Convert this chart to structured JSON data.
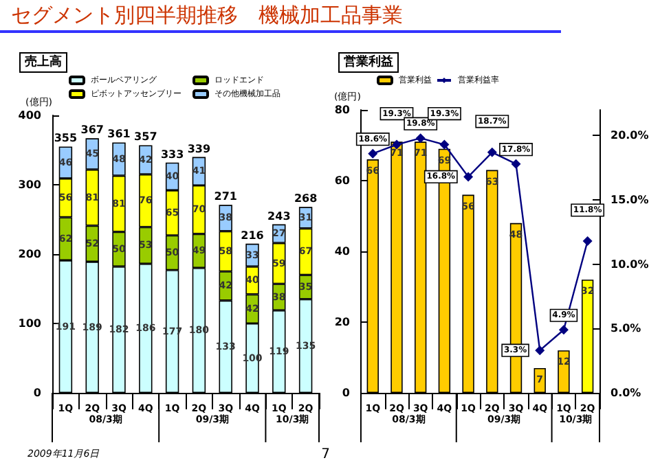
{
  "chart_data": [
    {
      "type": "bar",
      "title": "セグメント別四半期推移　機械加工品事業",
      "subtitle": "売上高",
      "ylabel": "(億円)",
      "categories": [
        "1Q",
        "2Q",
        "3Q",
        "4Q",
        "1Q",
        "2Q",
        "3Q",
        "4Q",
        "1Q",
        "2Q"
      ],
      "stacked": true,
      "data_labels": true,
      "totals": [
        "355",
        "367",
        "361",
        "357",
        "333",
        "339",
        "271",
        "216",
        "243",
        "268"
      ],
      "ylim": [
        0,
        400
      ],
      "yticks": [
        0,
        100,
        200,
        300,
        400
      ],
      "grid": false,
      "legend": "top",
      "annotations": [
        "08/3期",
        "09/3期",
        "10/3期",
        "2009年11月6日",
        "7"
      ],
      "series": [
        {
          "name": "ボールベアリング",
          "color": "#ccffff",
          "values": [
            191,
            189,
            182,
            186,
            177,
            180,
            133,
            100,
            119,
            135
          ]
        },
        {
          "name": "ロッドエンド",
          "color": "#99cc00",
          "values": [
            62,
            52,
            50,
            53,
            50,
            49,
            42,
            42,
            38,
            35
          ]
        },
        {
          "name": "ピボットアッセンブリー",
          "color": "#ffff00",
          "values": [
            56,
            81,
            81,
            76,
            65,
            70,
            58,
            40,
            59,
            67
          ]
        },
        {
          "name": "その他機械加工品",
          "color": "#99ccff",
          "values": [
            46,
            45,
            48,
            42,
            40,
            41,
            38,
            33,
            27,
            31
          ]
        }
      ]
    },
    {
      "type": "bar",
      "subtitle": "営業利益",
      "ylabel": "(億円)",
      "categories": [
        "1Q",
        "2Q",
        "3Q",
        "4Q",
        "1Q",
        "2Q",
        "3Q",
        "4Q",
        "1Q",
        "2Q"
      ],
      "ylim": [
        0,
        80
      ],
      "yticks": [
        0,
        20,
        40,
        60,
        80
      ],
      "y2lim": [
        0,
        22
      ],
      "y2ticks": [
        {
          "value": 0,
          "label": "0.0%"
        },
        {
          "value": 5,
          "label": "5.0%"
        },
        {
          "value": 10,
          "label": "10.0%"
        },
        {
          "value": 15,
          "label": "15.0%"
        },
        {
          "value": 20,
          "label": "20.0%"
        }
      ],
      "grid": false,
      "legend": "top",
      "annotations": [
        "08/3期",
        "09/3期",
        "10/3期"
      ],
      "series": [
        {
          "name": "営業利益",
          "color": "#ffcc00",
          "colors": [
            "#ffcc00",
            "#ffcc00",
            "#ffcc00",
            "#ffcc00",
            "#ffcc00",
            "#ffcc00",
            "#ffcc00",
            "#ffcc00",
            "#ffcc00",
            "#ffff00"
          ],
          "data_labels": true,
          "values": [
            66,
            71,
            71,
            69,
            56,
            63,
            48,
            7,
            12,
            32
          ]
        },
        {
          "name": "営業利益率",
          "type": "line",
          "axis": "y2",
          "color": "#000080",
          "marker": "diamond",
          "line_style": "solid",
          "values": [
            18.6,
            19.3,
            19.8,
            19.3,
            16.8,
            18.7,
            17.8,
            3.3,
            4.9,
            11.8
          ],
          "value_labels": [
            "18.6%",
            "19.3%",
            "19.8%",
            "19.3%",
            "16.8%",
            "18.7%",
            "17.8%",
            "3.3%",
            "4.9%",
            "11.8%"
          ]
        }
      ]
    }
  ]
}
